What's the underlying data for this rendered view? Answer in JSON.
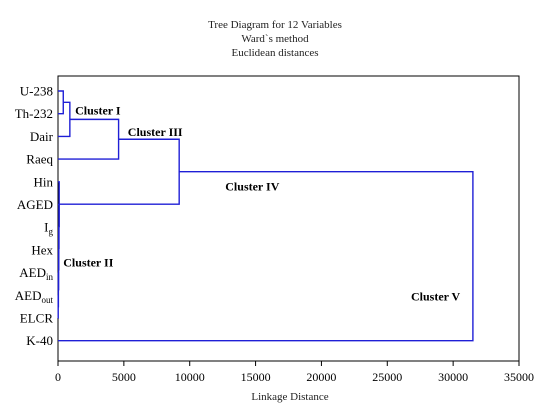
{
  "chart_data": {
    "type": "dendrogram",
    "title": [
      "Tree Diagram for 12  Variables",
      "Ward`s method",
      "Euclidean distances"
    ],
    "xlabel": "Linkage Distance",
    "xlim": [
      0,
      35000
    ],
    "xticks": [
      0,
      5000,
      10000,
      15000,
      20000,
      25000,
      30000,
      35000
    ],
    "leaves": [
      {
        "id": "U238",
        "label": "U-238",
        "sub": ""
      },
      {
        "id": "Th232",
        "label": "Th-232",
        "sub": ""
      },
      {
        "id": "Dair",
        "label": "Dair",
        "sub": ""
      },
      {
        "id": "Raeq",
        "label": "Raeq",
        "sub": ""
      },
      {
        "id": "Hin",
        "label": "Hin",
        "sub": ""
      },
      {
        "id": "AGED",
        "label": "AGED",
        "sub": ""
      },
      {
        "id": "Ig",
        "label": "I",
        "sub": "g"
      },
      {
        "id": "Hex",
        "label": "Hex",
        "sub": ""
      },
      {
        "id": "AEDin",
        "label": "AED",
        "sub": "in"
      },
      {
        "id": "AEDout",
        "label": "AED",
        "sub": "out"
      },
      {
        "id": "ELCR",
        "label": "ELCR",
        "sub": ""
      },
      {
        "id": "K40",
        "label": "K-40",
        "sub": ""
      }
    ],
    "merges": [
      {
        "id": "m1",
        "a": "U238",
        "b": "Th232",
        "height": 400
      },
      {
        "id": "m2",
        "a": "m1",
        "b": "Dair",
        "height": 900
      },
      {
        "id": "m3",
        "a": "m2",
        "b": "Raeq",
        "height": 4600
      },
      {
        "id": "m4",
        "a": "AEDout",
        "b": "ELCR",
        "height": 15
      },
      {
        "id": "m5",
        "a": "AEDin",
        "b": "m4",
        "height": 30
      },
      {
        "id": "m6",
        "a": "Hex",
        "b": "m5",
        "height": 45
      },
      {
        "id": "m7",
        "a": "Ig",
        "b": "m6",
        "height": 60
      },
      {
        "id": "m8",
        "a": "AGED",
        "b": "m7",
        "height": 75
      },
      {
        "id": "m9",
        "a": "Hin",
        "b": "m8",
        "height": 90
      },
      {
        "id": "m10",
        "a": "m3",
        "b": "m9",
        "height": 9200
      },
      {
        "id": "m11",
        "a": "m10",
        "b": "K40",
        "height": 31500
      }
    ],
    "annotations": [
      {
        "text": "Cluster I",
        "at_x": 1300,
        "at_leaf": 0.85
      },
      {
        "text": "Cluster III",
        "at_x": 5300,
        "at_leaf": 1.8
      },
      {
        "text": "Cluster IV",
        "at_x": 12700,
        "at_leaf": 4.2
      },
      {
        "text": "Cluster II",
        "at_x": 400,
        "at_leaf": 7.55
      },
      {
        "text": "Cluster V",
        "at_x": 26800,
        "at_leaf": 9.05
      }
    ]
  }
}
